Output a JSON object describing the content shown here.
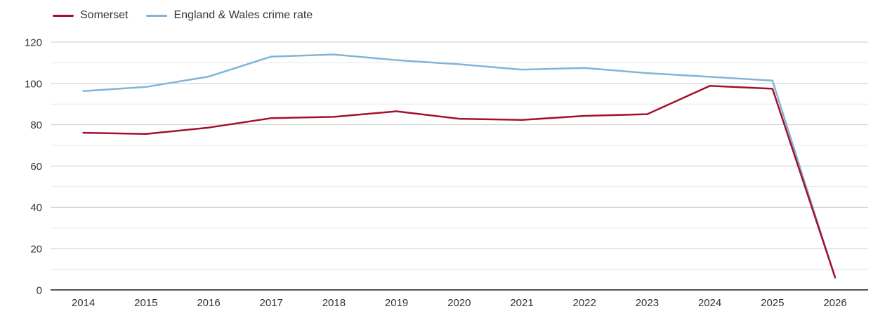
{
  "chart_data": {
    "type": "line",
    "title": "",
    "xlabel": "",
    "ylabel": "",
    "categories": [
      "2014",
      "2015",
      "2016",
      "2017",
      "2018",
      "2019",
      "2020",
      "2021",
      "2022",
      "2023",
      "2024",
      "2025",
      "2026"
    ],
    "series": [
      {
        "name": "Somerset",
        "color": "#a50f2d",
        "values": [
          76.1,
          75.5,
          78.6,
          83.2,
          83.8,
          86.5,
          82.9,
          82.3,
          84.3,
          85.1,
          98.8,
          97.4,
          6.1
        ]
      },
      {
        "name": "England & Wales crime rate",
        "color": "#82b4d7",
        "values": [
          96.3,
          98.3,
          103.3,
          113.0,
          114.0,
          111.3,
          109.3,
          106.7,
          107.5,
          105.0,
          103.2,
          101.4,
          5.8
        ]
      }
    ],
    "ylim": [
      0,
      120
    ],
    "yticks": [
      0,
      20,
      40,
      60,
      80,
      100,
      120
    ],
    "minor_yticks": [
      10,
      30,
      50,
      70,
      90,
      110
    ],
    "grid": true,
    "legend_position": "top-left",
    "colors": {
      "grid_major": "#cccccc",
      "grid_minor": "#e7e7e7",
      "axis": "#2b2b2b",
      "tick_text": "#333333"
    }
  }
}
